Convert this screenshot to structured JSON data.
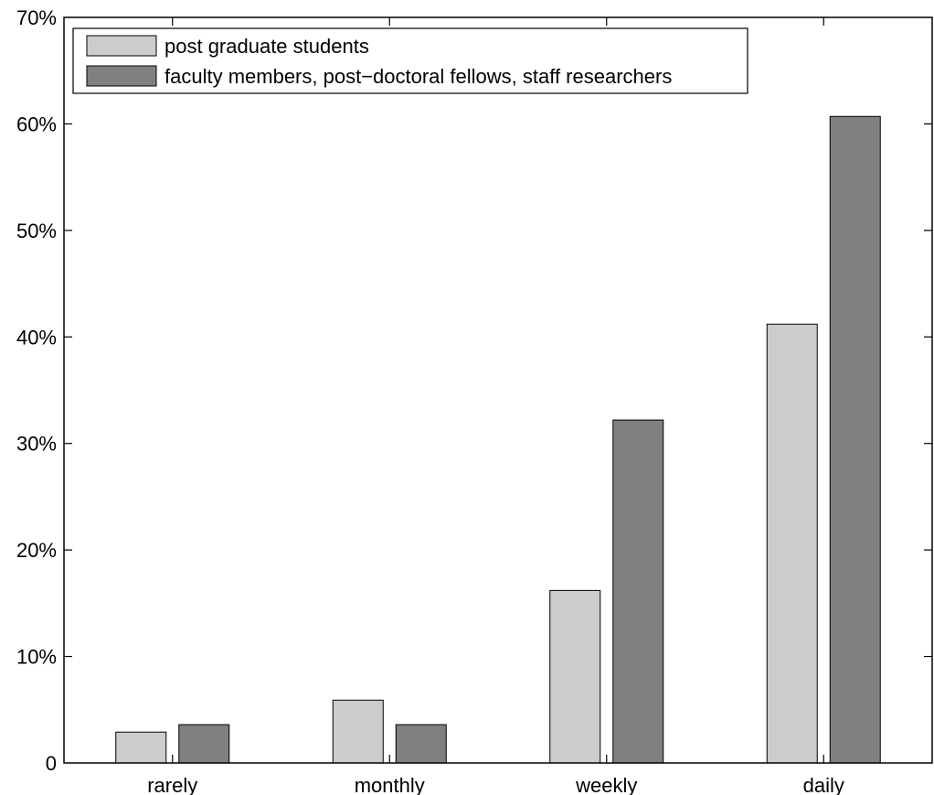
{
  "chart_data": {
    "type": "bar",
    "categories": [
      "rarely",
      "monthly",
      "weekly",
      "daily"
    ],
    "series": [
      {
        "name": "post graduate students",
        "values": [
          2.9,
          5.9,
          16.2,
          41.2
        ],
        "color": "#cccccc"
      },
      {
        "name": "faculty members, post−doctoral fellows, staff researchers",
        "values": [
          3.6,
          3.6,
          32.2,
          60.7
        ],
        "color": "#808080"
      }
    ],
    "ylim": [
      0,
      70
    ],
    "y_ticks": [
      0,
      10,
      20,
      30,
      40,
      50,
      60,
      70
    ],
    "y_tick_labels": [
      "0",
      "10%",
      "20%",
      "30%",
      "40%",
      "50%",
      "60%",
      "70%"
    ],
    "grid": false,
    "legend_position": "top-left",
    "title": "",
    "xlabel": "",
    "ylabel": ""
  }
}
